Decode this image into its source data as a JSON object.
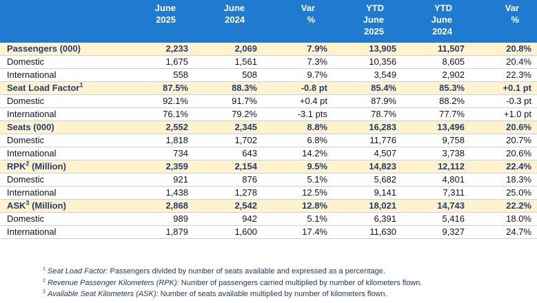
{
  "table": {
    "header": [
      [],
      [
        "June",
        "2025"
      ],
      [
        "June",
        "2024"
      ],
      [
        "Var",
        "%"
      ],
      [
        "YTD",
        "June",
        "2025"
      ],
      [
        "YTD",
        "June",
        "2024"
      ],
      [
        "Var",
        "%"
      ]
    ],
    "sections": [
      {
        "label": {
          "pre": "Passengers (000)"
        },
        "values": [
          "2,233",
          "2,069",
          "7.9%",
          "13,905",
          "11,507",
          "20.8%"
        ],
        "rows": [
          {
            "label": "Domestic",
            "values": [
              "1,675",
              "1,561",
              "7.3%",
              "10,356",
              "8,605",
              "20.4%"
            ]
          },
          {
            "label": "International",
            "values": [
              "558",
              "508",
              "9.7%",
              "3,549",
              "2,902",
              "22.3%"
            ]
          }
        ]
      },
      {
        "label": {
          "pre": "Seat Load Factor",
          "sup": "1"
        },
        "values": [
          "87.5%",
          "88.3%",
          "-0.8 pt",
          "85.4%",
          "85.3%",
          "+0.1 pt"
        ],
        "rows": [
          {
            "label": "Domestic",
            "values": [
              "92.1%",
              "91.7%",
              "+0.4 pt",
              "87.9%",
              "88.2%",
              "-0.3 pt"
            ]
          },
          {
            "label": "International",
            "values": [
              "76.1%",
              "79.2%",
              "-3.1 pts",
              "78.7%",
              "77.7%",
              "+1.0 pt"
            ]
          }
        ]
      },
      {
        "label": {
          "pre": "Seats (000)"
        },
        "values": [
          "2,552",
          "2,345",
          "8.8%",
          "16,283",
          "13,496",
          "20.6%"
        ],
        "rows": [
          {
            "label": "Domestic",
            "values": [
              "1,818",
              "1,702",
              "6.8%",
              "11,776",
              "9,758",
              "20.7%"
            ]
          },
          {
            "label": "International",
            "values": [
              "734",
              "643",
              "14.2%",
              "4,507",
              "3,738",
              "20.6%"
            ]
          }
        ]
      },
      {
        "label": {
          "pre": "RPK",
          "sup": "2",
          "post": " (Million)"
        },
        "values": [
          "2,359",
          "2,154",
          "9.5%",
          "14,823",
          "12,112",
          "22.4%"
        ],
        "rows": [
          {
            "label": "Domestic",
            "values": [
              "921",
              "876",
              "5.1%",
              "5,682",
              "4,801",
              "18.3%"
            ]
          },
          {
            "label": "International",
            "values": [
              "1,438",
              "1,278",
              "12.5%",
              "9,141",
              "7,311",
              "25.0%"
            ]
          }
        ]
      },
      {
        "label": {
          "pre": "ASK",
          "sup": "3",
          "post": " (Million)"
        },
        "values": [
          "2,868",
          "2,542",
          "12.8%",
          "18,021",
          "14,743",
          "22.2%"
        ],
        "rows": [
          {
            "label": "Domestic",
            "values": [
              "989",
              "942",
              "5.1%",
              "6,391",
              "5,416",
              "18.0%"
            ]
          },
          {
            "label": "International",
            "values": [
              "1,879",
              "1,600",
              "17.4%",
              "11,630",
              "9,327",
              "24.7%"
            ]
          }
        ]
      }
    ]
  },
  "footnotes": [
    {
      "sup": "1",
      "term": "Seat Load Factor:",
      "text": " Passengers divided by number of seats available and expressed as a percentage."
    },
    {
      "sup": "2",
      "term": "Revenue Passenger Kilometers (RPK):",
      "text": " Number of passengers carried multiplied by number of kilometers flown."
    },
    {
      "sup": "3",
      "term": "Available Seat Kilometers (ASK):",
      "text": " Number of seats available multiplied by number of kilometers flown."
    }
  ]
}
